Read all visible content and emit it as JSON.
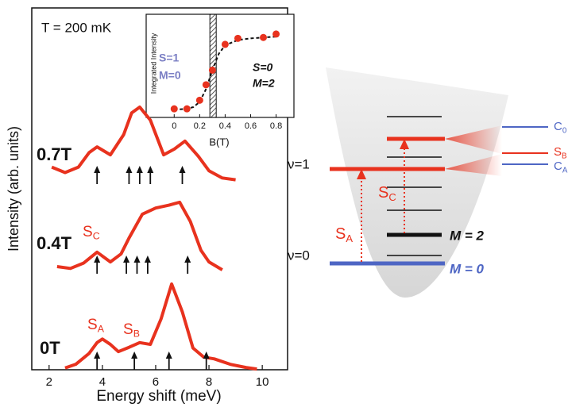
{
  "chart_data": [
    {
      "type": "line",
      "annotation": "T = 200 mK",
      "xlabel": "Energy shift (meV)",
      "ylabel": "Intensity (arb. units)",
      "xlim": [
        1.35,
        10.95
      ],
      "xticks": [
        2,
        4,
        6,
        8,
        10
      ],
      "ylim": [
        0,
        10
      ],
      "series": [
        {
          "name": "0T",
          "color": "#e8321e",
          "x": [
            2.6,
            3.0,
            3.5,
            3.8,
            4.0,
            4.3,
            4.6,
            5.0,
            5.4,
            5.8,
            6.2,
            6.6,
            7.0,
            7.4,
            7.8,
            8.2,
            8.8,
            9.4,
            9.8
          ],
          "values": [
            0.05,
            0.15,
            0.45,
            0.75,
            0.85,
            0.7,
            0.5,
            0.62,
            0.75,
            0.7,
            1.4,
            2.37,
            1.6,
            0.6,
            0.35,
            0.3,
            0.15,
            0.06,
            0.02
          ],
          "arrows": [
            3.8,
            5.2,
            6.5,
            7.9
          ],
          "peak_labels": [
            {
              "text": "S",
              "sub": "A"
            },
            {
              "text": "S",
              "sub": "B"
            }
          ]
        },
        {
          "name": "0.4T",
          "color": "#e8321e",
          "x": [
            2.3,
            2.8,
            3.3,
            3.8,
            4.3,
            4.7,
            5.0,
            5.5,
            6.0,
            6.5,
            6.9,
            7.3,
            7.7,
            8.0,
            8.5
          ],
          "values": [
            2.85,
            2.8,
            2.95,
            3.25,
            2.98,
            3.2,
            3.64,
            4.3,
            4.47,
            4.55,
            4.63,
            4.1,
            3.3,
            2.98,
            2.76
          ],
          "arrows": [
            3.8,
            4.9,
            5.3,
            5.7,
            7.2
          ],
          "peak_labels": [
            {
              "text": "S",
              "sub": "C"
            }
          ]
        },
        {
          "name": "0.7T",
          "color": "#e8321e",
          "x": [
            2.1,
            2.6,
            3.1,
            3.5,
            3.8,
            4.3,
            4.8,
            5.1,
            5.4,
            5.8,
            6.3,
            6.7,
            7.1,
            7.6,
            8.0,
            8.5,
            9.0
          ],
          "values": [
            5.6,
            5.45,
            5.6,
            6.0,
            6.16,
            5.94,
            6.5,
            7.1,
            7.26,
            6.9,
            5.94,
            6.1,
            6.32,
            5.9,
            5.5,
            5.3,
            5.25
          ],
          "arrows": [
            3.8,
            5.0,
            5.4,
            5.8,
            7.0
          ],
          "peak_labels": []
        }
      ]
    },
    {
      "type": "scatter",
      "xlabel": "B(T)",
      "ylabel": "Integrated Intensity",
      "xlim": [
        -0.22,
        0.94
      ],
      "xticks": [
        0,
        0.2,
        0.4,
        0.6,
        0.8
      ],
      "ylim": [
        0,
        1.2
      ],
      "shade": [
        0.28,
        0.33
      ],
      "series": [
        {
          "color": "#e8321e",
          "x": [
            0,
            0.1,
            0.2,
            0.25,
            0.3,
            0.4,
            0.5,
            0.7,
            0.8
          ],
          "values": [
            0.1,
            0.1,
            0.2,
            0.38,
            0.55,
            0.85,
            0.92,
            0.93,
            0.97
          ]
        }
      ],
      "fit": {
        "x": [
          0,
          0.1,
          0.15,
          0.2,
          0.25,
          0.3,
          0.35,
          0.4,
          0.5,
          0.6,
          0.7,
          0.8
        ],
        "values": [
          0.09,
          0.1,
          0.12,
          0.18,
          0.33,
          0.55,
          0.74,
          0.84,
          0.9,
          0.92,
          0.93,
          0.94
        ]
      },
      "labels_left": [
        "S=1",
        "M=0"
      ],
      "labels_right": [
        "S=0",
        "M=2"
      ]
    }
  ],
  "diagram": {
    "nu1": "ν=1",
    "nu0": "ν=0",
    "m2": "M = 2",
    "m0": "M = 0",
    "transitions": [
      {
        "text": "S",
        "sub": "A"
      },
      {
        "text": "S",
        "sub": "C"
      }
    ],
    "side_labels": [
      {
        "text": "C",
        "sub": "0"
      },
      {
        "text": "S",
        "sub": "B"
      },
      {
        "text": "C",
        "sub": "A"
      }
    ]
  }
}
